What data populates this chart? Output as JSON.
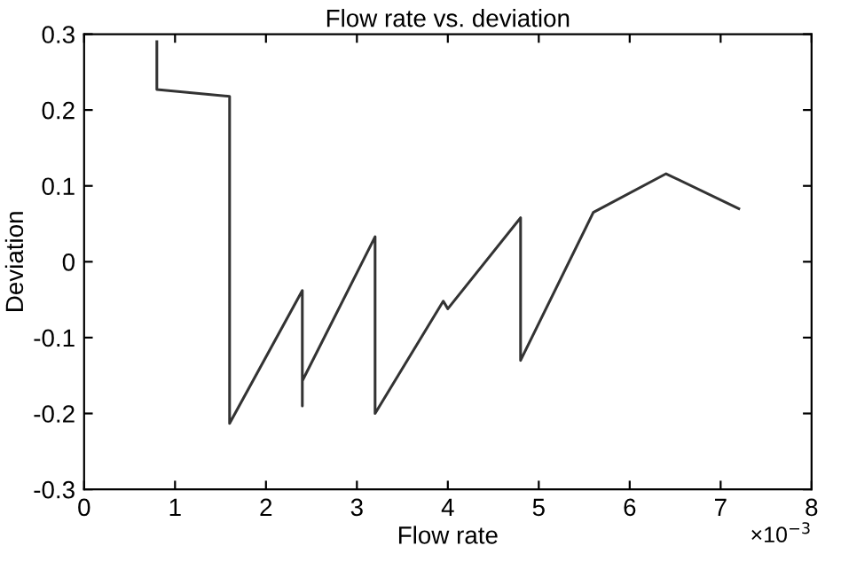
{
  "chart_data": {
    "type": "line",
    "title": "Flow rate vs. deviation",
    "xlabel": "Flow rate",
    "ylabel": "Deviation",
    "x": [
      0.8,
      0.8,
      1.6,
      1.6,
      2.4,
      2.4,
      2.4,
      3.2,
      3.2,
      3.95,
      4.0,
      4.8,
      4.8,
      5.6,
      6.4,
      7.2
    ],
    "series": [
      {
        "color": "#333333",
        "values": [
          0.29,
          0.227,
          0.218,
          -0.213,
          -0.038,
          -0.19,
          -0.157,
          0.033,
          -0.2,
          -0.052,
          -0.062,
          0.058,
          -0.13,
          0.065,
          0.116,
          0.07
        ]
      }
    ],
    "xlim": [
      0,
      8
    ],
    "xticks": [
      0,
      1,
      2,
      3,
      4,
      5,
      6,
      7,
      8
    ],
    "ylim": [
      -0.3,
      0.3
    ],
    "yticks": [
      -0.3,
      -0.2,
      -0.1,
      0,
      0.1,
      0.2,
      0.3
    ],
    "annotations": [
      "×10$^{−3}$"
    ],
    "grid": false,
    "legend": false
  }
}
